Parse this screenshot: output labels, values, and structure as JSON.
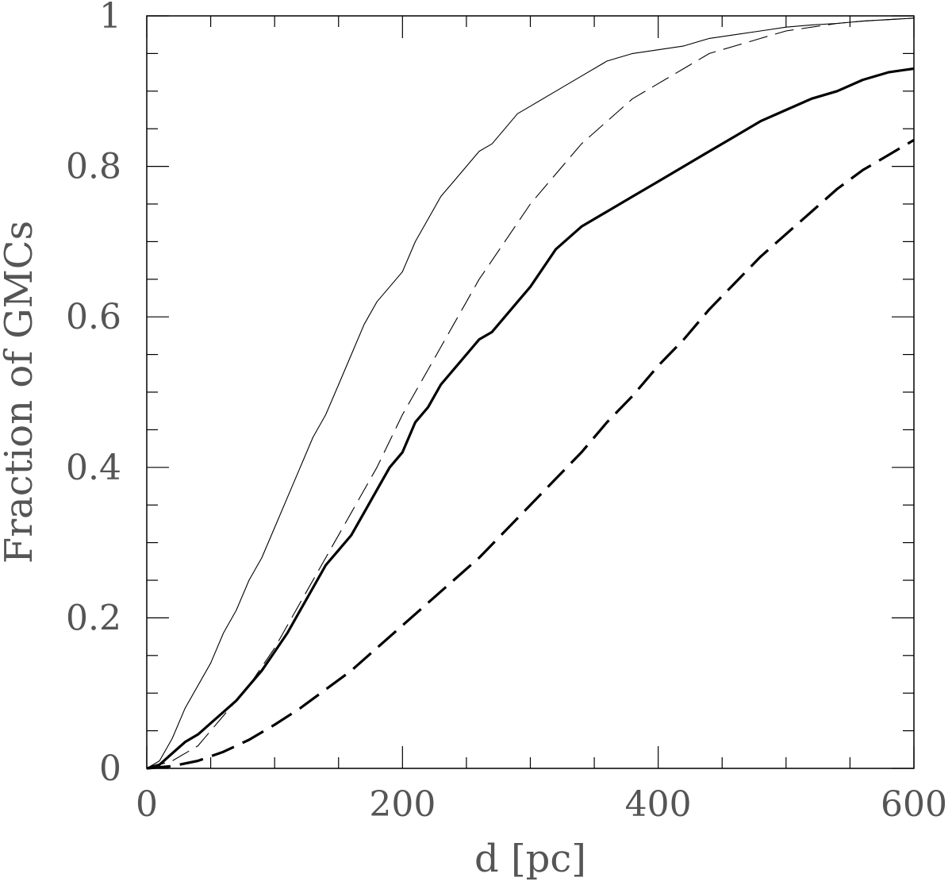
{
  "chart_data": {
    "type": "line",
    "title": "",
    "xlabel": "d [pc]",
    "ylabel": "Fraction of GMCs",
    "xlim": [
      0,
      600
    ],
    "ylim": [
      0,
      1
    ],
    "x_ticks": [
      0,
      200,
      400,
      600
    ],
    "x_tick_labels": [
      "0",
      "200",
      "400",
      "600"
    ],
    "y_ticks": [
      0,
      0.2,
      0.4,
      0.6,
      0.8,
      1
    ],
    "y_tick_labels": [
      "0",
      "0.2",
      "0.4",
      "0.6",
      "0.8",
      "1"
    ],
    "x_minor_step": 50,
    "y_minor_step": 0.05,
    "grid": false,
    "legend": "none",
    "series": [
      {
        "style": "thin-solid",
        "color": "#000000",
        "x": [
          0,
          10,
          20,
          30,
          40,
          50,
          60,
          70,
          80,
          90,
          100,
          110,
          120,
          130,
          140,
          150,
          160,
          170,
          180,
          190,
          200,
          210,
          220,
          230,
          240,
          250,
          260,
          270,
          280,
          290,
          300,
          320,
          340,
          360,
          380,
          400,
          420,
          440,
          460,
          480,
          500,
          520,
          540,
          560,
          580,
          600
        ],
        "y": [
          0,
          0.01,
          0.04,
          0.08,
          0.11,
          0.14,
          0.18,
          0.21,
          0.25,
          0.28,
          0.32,
          0.36,
          0.4,
          0.44,
          0.47,
          0.51,
          0.55,
          0.59,
          0.62,
          0.64,
          0.66,
          0.7,
          0.73,
          0.76,
          0.78,
          0.8,
          0.82,
          0.83,
          0.85,
          0.87,
          0.88,
          0.9,
          0.92,
          0.94,
          0.95,
          0.955,
          0.96,
          0.97,
          0.975,
          0.98,
          0.985,
          0.988,
          0.99,
          0.993,
          0.995,
          0.997
        ]
      },
      {
        "style": "thin-dashed",
        "color": "#000000",
        "x": [
          0,
          20,
          40,
          60,
          80,
          100,
          120,
          140,
          160,
          180,
          200,
          220,
          240,
          260,
          280,
          300,
          320,
          340,
          360,
          380,
          400,
          420,
          440,
          460,
          480,
          500,
          520,
          540,
          560,
          580,
          600
        ],
        "y": [
          0,
          0.01,
          0.03,
          0.07,
          0.11,
          0.16,
          0.22,
          0.28,
          0.34,
          0.4,
          0.47,
          0.53,
          0.59,
          0.65,
          0.7,
          0.75,
          0.79,
          0.83,
          0.86,
          0.89,
          0.91,
          0.93,
          0.95,
          0.96,
          0.97,
          0.98,
          0.985,
          0.99,
          0.993,
          0.995,
          0.997
        ]
      },
      {
        "style": "thick-solid",
        "color": "#000000",
        "x": [
          0,
          10,
          20,
          30,
          40,
          50,
          60,
          70,
          80,
          90,
          100,
          110,
          120,
          130,
          140,
          150,
          160,
          170,
          180,
          190,
          200,
          210,
          220,
          230,
          240,
          250,
          260,
          270,
          280,
          290,
          300,
          320,
          340,
          360,
          380,
          400,
          420,
          440,
          460,
          480,
          500,
          520,
          540,
          560,
          580,
          600
        ],
        "y": [
          0,
          0.005,
          0.02,
          0.035,
          0.045,
          0.06,
          0.075,
          0.09,
          0.11,
          0.13,
          0.155,
          0.18,
          0.21,
          0.24,
          0.27,
          0.29,
          0.31,
          0.34,
          0.37,
          0.4,
          0.42,
          0.46,
          0.48,
          0.51,
          0.53,
          0.55,
          0.57,
          0.58,
          0.6,
          0.62,
          0.64,
          0.69,
          0.72,
          0.74,
          0.76,
          0.78,
          0.8,
          0.82,
          0.84,
          0.86,
          0.875,
          0.89,
          0.9,
          0.915,
          0.925,
          0.93
        ]
      },
      {
        "style": "thick-dashed",
        "color": "#000000",
        "x": [
          0,
          20,
          40,
          60,
          80,
          100,
          120,
          140,
          160,
          180,
          200,
          220,
          240,
          260,
          280,
          300,
          320,
          340,
          360,
          380,
          400,
          420,
          440,
          460,
          480,
          500,
          520,
          540,
          560,
          580,
          600
        ],
        "y": [
          0,
          0.003,
          0.01,
          0.022,
          0.038,
          0.058,
          0.08,
          0.105,
          0.13,
          0.16,
          0.19,
          0.22,
          0.25,
          0.28,
          0.315,
          0.35,
          0.385,
          0.42,
          0.46,
          0.495,
          0.535,
          0.57,
          0.61,
          0.645,
          0.68,
          0.71,
          0.74,
          0.77,
          0.795,
          0.815,
          0.835
        ]
      }
    ]
  }
}
